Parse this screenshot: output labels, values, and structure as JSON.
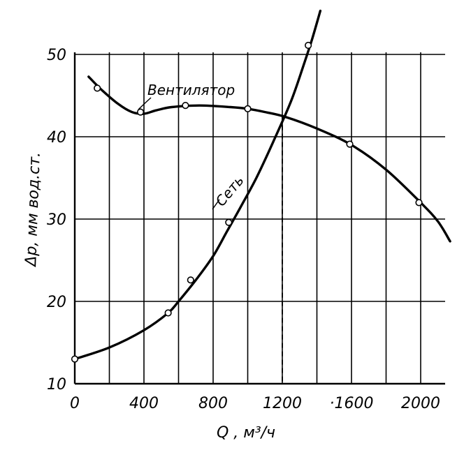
{
  "chart_data": {
    "type": "line",
    "xlabel": "Q , м³/ч",
    "ylabel": "Δp,  мм вод.ст.",
    "xlim": [
      0,
      2150
    ],
    "ylim": [
      10,
      52
    ],
    "xticks": [
      0,
      400,
      800,
      1200,
      1600,
      2000
    ],
    "xtick_labels": [
      "0",
      "400",
      "800",
      "1200",
      "·1600",
      "2000"
    ],
    "yticks": [
      10,
      20,
      30,
      40,
      50
    ],
    "ytick_labels": [
      "10",
      "20",
      "30",
      "40",
      "50"
    ],
    "grid": true,
    "series": [
      {
        "name": "Вентилятор",
        "curve": [
          [
            80,
            47.3
          ],
          [
            150,
            45.8
          ],
          [
            250,
            44.0
          ],
          [
            330,
            43.0
          ],
          [
            400,
            42.8
          ],
          [
            470,
            43.2
          ],
          [
            560,
            43.6
          ],
          [
            720,
            43.8
          ],
          [
            900,
            43.6
          ],
          [
            1000,
            43.4
          ],
          [
            1100,
            43.0
          ],
          [
            1220,
            42.4
          ],
          [
            1400,
            41.0
          ],
          [
            1600,
            39.0
          ],
          [
            1800,
            36.0
          ],
          [
            2000,
            32.0
          ],
          [
            2100,
            29.7
          ],
          [
            2170,
            27.3
          ]
        ],
        "points": [
          [
            130,
            45.9
          ],
          [
            380,
            43.0
          ],
          [
            640,
            43.8
          ],
          [
            1000,
            43.4
          ],
          [
            1590,
            39.1
          ],
          [
            1990,
            32.0
          ]
        ]
      },
      {
        "name": "Сеть",
        "curve": [
          [
            0,
            13.0
          ],
          [
            200,
            14.4
          ],
          [
            400,
            16.5
          ],
          [
            540,
            18.6
          ],
          [
            600,
            20.0
          ],
          [
            700,
            22.6
          ],
          [
            800,
            25.5
          ],
          [
            880,
            28.5
          ],
          [
            960,
            31.5
          ],
          [
            1050,
            35.0
          ],
          [
            1150,
            39.5
          ],
          [
            1250,
            44.3
          ],
          [
            1320,
            48.5
          ],
          [
            1370,
            51.7
          ],
          [
            1420,
            55.3
          ]
        ],
        "points": [
          [
            0,
            13.0
          ],
          [
            540,
            18.6
          ],
          [
            670,
            22.6
          ],
          [
            890,
            29.6
          ],
          [
            1350,
            51.1
          ]
        ]
      }
    ],
    "operating_point_q": 1200
  }
}
